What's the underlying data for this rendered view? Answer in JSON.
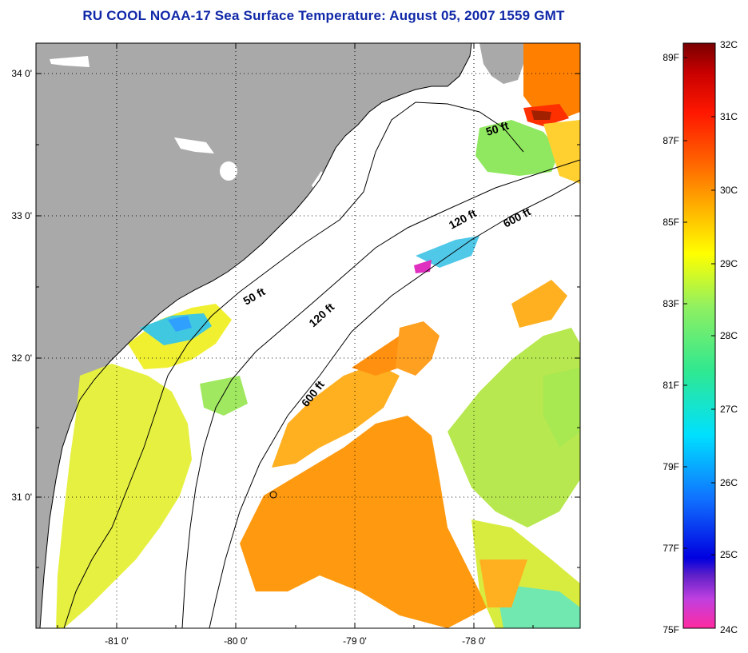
{
  "title": "RU COOL  NOAA-17  Sea Surface Temperature:  August 05, 2007 1559 GMT",
  "map": {
    "lat_ticks": [
      "34 0'",
      "33 0'",
      "32 0'",
      "31 0'"
    ],
    "lon_ticks": [
      "-81 0'",
      "-80 0'",
      "-79 0'",
      "-78 0'"
    ],
    "contours": [
      {
        "label": "50 ft"
      },
      {
        "label": "50 ft"
      },
      {
        "label": "120 ft"
      },
      {
        "label": "120 ft"
      },
      {
        "label": "600 ft"
      },
      {
        "label": "600 ft"
      }
    ],
    "colors": {
      "land": "#a9a9a9",
      "no_data": "#ffffff",
      "grid": "#000000"
    }
  },
  "colorbar": {
    "celsius": [
      "32C",
      "31C",
      "30C",
      "29C",
      "28C",
      "27C",
      "26C",
      "25C",
      "24C"
    ],
    "fahrenheit": [
      "89F",
      "87F",
      "85F",
      "83F",
      "81F",
      "79F",
      "77F",
      "75F"
    ],
    "gradient": [
      "#ff2aa0",
      "#c040e0",
      "#6020c8",
      "#0000e0",
      "#1070ff",
      "#00e0ff",
      "#30e890",
      "#90f060",
      "#ffff00",
      "#ffb000",
      "#ff6000",
      "#ff1800",
      "#c80000",
      "#780000"
    ]
  }
}
